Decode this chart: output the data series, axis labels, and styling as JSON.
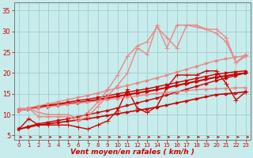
{
  "background_color": "#c8ecec",
  "grid_color": "#a0cccc",
  "xlabel": "Vent moyen/en rafales ( km/h )",
  "xlim": [
    -0.5,
    23.5
  ],
  "ylim": [
    4,
    37
  ],
  "yticks": [
    5,
    10,
    15,
    20,
    25,
    30,
    35
  ],
  "xticks": [
    0,
    1,
    2,
    3,
    4,
    5,
    6,
    7,
    8,
    9,
    10,
    11,
    12,
    13,
    14,
    15,
    16,
    17,
    18,
    19,
    20,
    21,
    22,
    23
  ],
  "x": [
    0,
    1,
    2,
    3,
    4,
    5,
    6,
    7,
    8,
    9,
    10,
    11,
    12,
    13,
    14,
    15,
    16,
    17,
    18,
    19,
    20,
    21,
    22,
    23
  ],
  "lines": [
    {
      "y": [
        6.5,
        7.0,
        7.5,
        7.8,
        8.1,
        8.4,
        8.7,
        9.0,
        9.4,
        9.8,
        10.2,
        10.6,
        11.0,
        11.4,
        11.8,
        12.3,
        12.8,
        13.3,
        13.8,
        14.3,
        14.8,
        15.0,
        15.2,
        15.5
      ],
      "color": "#cc0000",
      "marker": ">",
      "lw": 1.2,
      "ms": 2.5
    },
    {
      "y": [
        6.5,
        7.2,
        7.8,
        8.2,
        8.6,
        9.0,
        9.5,
        10.0,
        10.5,
        11.0,
        11.6,
        12.2,
        12.8,
        13.4,
        14.0,
        14.7,
        15.4,
        16.1,
        16.8,
        17.5,
        18.2,
        18.8,
        19.4,
        20.0
      ],
      "color": "#cc0000",
      "marker": ">",
      "lw": 1.0,
      "ms": 2.5
    },
    {
      "y": [
        6.5,
        9.0,
        7.5,
        7.5,
        7.5,
        7.5,
        7.0,
        6.5,
        7.5,
        8.5,
        11.0,
        16.0,
        11.5,
        10.5,
        12.0,
        16.5,
        19.5,
        19.5,
        19.5,
        20.5,
        20.5,
        17.5,
        13.5,
        15.5
      ],
      "color": "#cc0000",
      "marker": "+",
      "lw": 1.0,
      "ms": 4
    },
    {
      "y": [
        11.0,
        11.4,
        11.8,
        12.0,
        12.3,
        12.6,
        12.9,
        13.2,
        13.6,
        14.0,
        14.4,
        14.8,
        15.2,
        15.6,
        16.0,
        16.5,
        17.0,
        17.5,
        18.0,
        18.5,
        19.0,
        19.3,
        19.7,
        20.0
      ],
      "color": "#cc0000",
      "marker": ">",
      "lw": 1.5,
      "ms": 3
    },
    {
      "y": [
        11.0,
        11.5,
        12.0,
        12.3,
        12.6,
        13.0,
        13.4,
        13.7,
        14.1,
        14.5,
        15.0,
        15.4,
        15.8,
        16.2,
        16.7,
        17.2,
        17.7,
        18.2,
        18.7,
        19.2,
        19.7,
        20.0,
        20.3,
        20.5
      ],
      "color": "#cc0000",
      "marker": ">",
      "lw": 1.0,
      "ms": 2.5
    },
    {
      "y": [
        11.0,
        11.3,
        11.6,
        11.9,
        12.2,
        12.5,
        12.8,
        13.0,
        13.3,
        13.6,
        13.9,
        14.2,
        14.5,
        14.8,
        15.1,
        15.3,
        15.5,
        15.7,
        16.0,
        16.1,
        16.2,
        16.3,
        16.4,
        16.5
      ],
      "color": "#e88888",
      "marker": ">",
      "lw": 1.0,
      "ms": 2.5
    },
    {
      "y": [
        11.0,
        11.6,
        12.1,
        12.6,
        13.1,
        13.6,
        14.1,
        14.6,
        15.2,
        15.8,
        16.4,
        17.0,
        17.6,
        18.2,
        18.8,
        19.5,
        20.2,
        20.9,
        21.6,
        22.3,
        23.0,
        23.4,
        23.8,
        24.2
      ],
      "color": "#e88888",
      "marker": ">",
      "lw": 1.0,
      "ms": 2.5
    },
    {
      "y": [
        11.0,
        11.5,
        9.5,
        9.5,
        9.5,
        9.5,
        8.5,
        9.5,
        12.0,
        14.5,
        17.0,
        20.0,
        26.0,
        24.5,
        31.5,
        26.0,
        31.5,
        31.5,
        31.5,
        30.5,
        30.5,
        28.5,
        22.5,
        24.0
      ],
      "color": "#e88888",
      "marker": "+",
      "lw": 1.0,
      "ms": 4
    },
    {
      "y": [
        11.5,
        11.5,
        10.5,
        10.0,
        10.0,
        10.0,
        9.0,
        10.5,
        13.0,
        16.0,
        19.5,
        24.0,
        26.5,
        27.5,
        31.0,
        28.5,
        26.0,
        31.5,
        31.0,
        30.5,
        29.5,
        27.5,
        22.5,
        24.5
      ],
      "color": "#e88888",
      "marker": "+",
      "lw": 1.0,
      "ms": 4
    }
  ],
  "xlabel_color": "#cc0000",
  "tick_color": "#cc0000"
}
